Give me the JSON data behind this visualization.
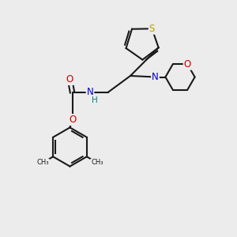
{
  "background_color": "#ececec",
  "bond_color": "#1a1a1a",
  "atom_colors": {
    "S": "#b8a000",
    "N": "#0000cc",
    "O": "#cc0000",
    "H": "#008080",
    "C": "#1a1a1a"
  },
  "figsize": [
    3.0,
    3.0
  ],
  "dpi": 100,
  "xlim": [
    0,
    10
  ],
  "ylim": [
    0,
    10
  ]
}
